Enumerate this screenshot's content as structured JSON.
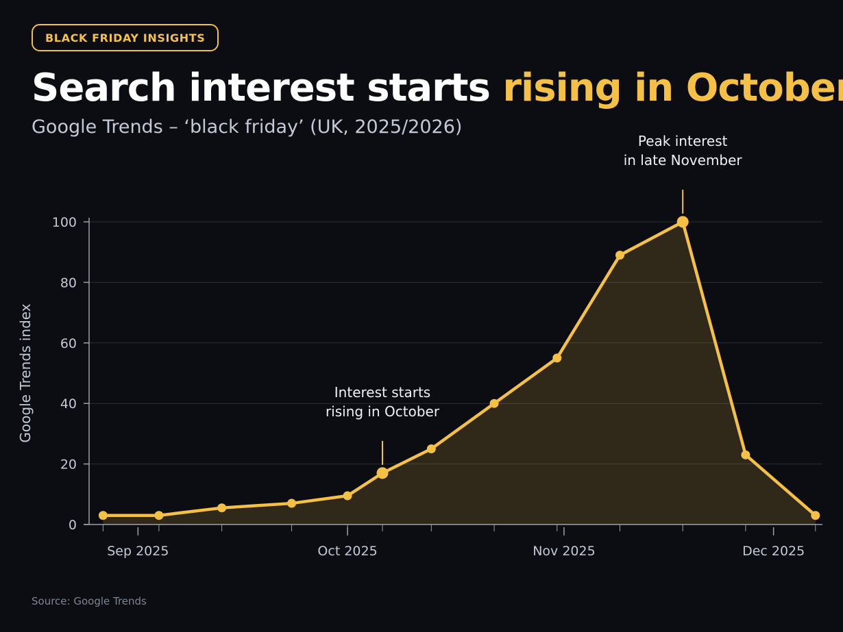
{
  "badge": "BLACK FRIDAY INSIGHTS",
  "title": {
    "main": "Search interest starts ",
    "highlight": "rising in October"
  },
  "subtitle": "Google Trends – ‘black friday’ (UK, 2025/2026)",
  "source": "Source: Google Trends",
  "colors": {
    "accent": "#f4c045",
    "background": "#0b0d12",
    "grid": "#2a2f38",
    "axis": "#9aa1ad",
    "text": "#c3c9d6"
  },
  "chart_data": {
    "type": "area",
    "ylabel": "Google Trends index",
    "xlabel": "",
    "ylim": [
      0,
      100
    ],
    "yticks": [
      0,
      20,
      40,
      60,
      80,
      100
    ],
    "xlim": [
      "2025-08-25",
      "2025-12-08"
    ],
    "xticks": [
      {
        "date": "2025-09-01",
        "label": "Sep 2025"
      },
      {
        "date": "2025-10-01",
        "label": "Oct 2025"
      },
      {
        "date": "2025-11-01",
        "label": "Nov 2025"
      },
      {
        "date": "2025-12-01",
        "label": "Dec 2025"
      }
    ],
    "grid": true,
    "series": [
      {
        "points": [
          {
            "x": "2025-08-27",
            "y": 3
          },
          {
            "x": "2025-09-04",
            "y": 3
          },
          {
            "x": "2025-09-13",
            "y": 5.5
          },
          {
            "x": "2025-09-23",
            "y": 7
          },
          {
            "x": "2025-10-01",
            "y": 9.5
          },
          {
            "x": "2025-10-06",
            "y": 17
          },
          {
            "x": "2025-10-13",
            "y": 25
          },
          {
            "x": "2025-10-22",
            "y": 40
          },
          {
            "x": "2025-10-31",
            "y": 55
          },
          {
            "x": "2025-11-09",
            "y": 89
          },
          {
            "x": "2025-11-18",
            "y": 100
          },
          {
            "x": "2025-11-27",
            "y": 23
          },
          {
            "x": "2025-12-07",
            "y": 3
          }
        ]
      }
    ],
    "annotations": [
      {
        "x": "2025-10-06",
        "y": 17,
        "lines": [
          "Interest starts",
          "rising in October"
        ]
      },
      {
        "x": "2025-11-18",
        "y": 100,
        "lines": [
          "Peak interest",
          "in late November"
        ]
      }
    ]
  }
}
